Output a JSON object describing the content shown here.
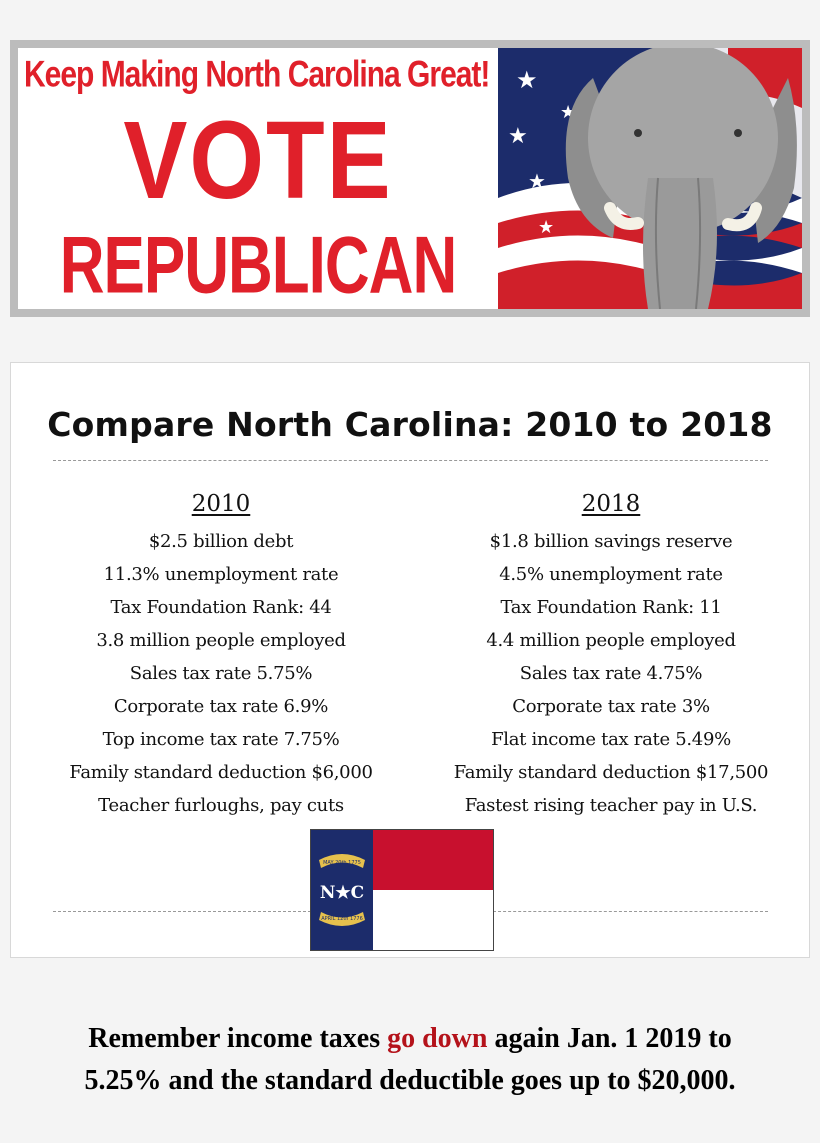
{
  "banner": {
    "slogan": "Keep Making North Carolina Great!",
    "vote": "VOTE",
    "party": "REPUBLICAN",
    "colors": {
      "red": "#e0202a",
      "flag_blue": "#1c2c6b"
    }
  },
  "comparison": {
    "title": "Compare North Carolina: 2010 to 2018",
    "left": {
      "year": "2010",
      "items": [
        "$2.5 billion debt",
        "11.3% unemployment rate",
        "Tax Foundation Rank: 44",
        "3.8 million people employed",
        "Sales tax rate 5.75%",
        "Corporate tax rate 6.9%",
        "Top income tax rate 7.75%",
        "Family standard deduction $6,000",
        "Teacher furloughs, pay cuts"
      ]
    },
    "right": {
      "year": "2018",
      "items": [
        "$1.8 billion savings reserve",
        "4.5% unemployment rate",
        "Tax Foundation Rank: 11",
        "4.4 million people employed",
        "Sales tax rate 4.75%",
        "Corporate tax rate 3%",
        "Flat income tax rate 5.49%",
        "Family standard deduction $17,500",
        "Fastest rising teacher pay in U.S."
      ]
    },
    "nc_flag": {
      "letters": "N★C",
      "ribbon_top": "MAY 20th 1775",
      "ribbon_bottom": "APRIL 12th 1776",
      "colors": {
        "blue": "#1c2c6b",
        "red": "#c8102e",
        "white": "#ffffff",
        "gold": "#e6c14d"
      }
    }
  },
  "note": {
    "part1": "Remember income taxes ",
    "highlight": "go down",
    "part2": " again Jan. 1 2019 to",
    "line2": "5.25% and the standard deductible goes up to $20,000."
  }
}
